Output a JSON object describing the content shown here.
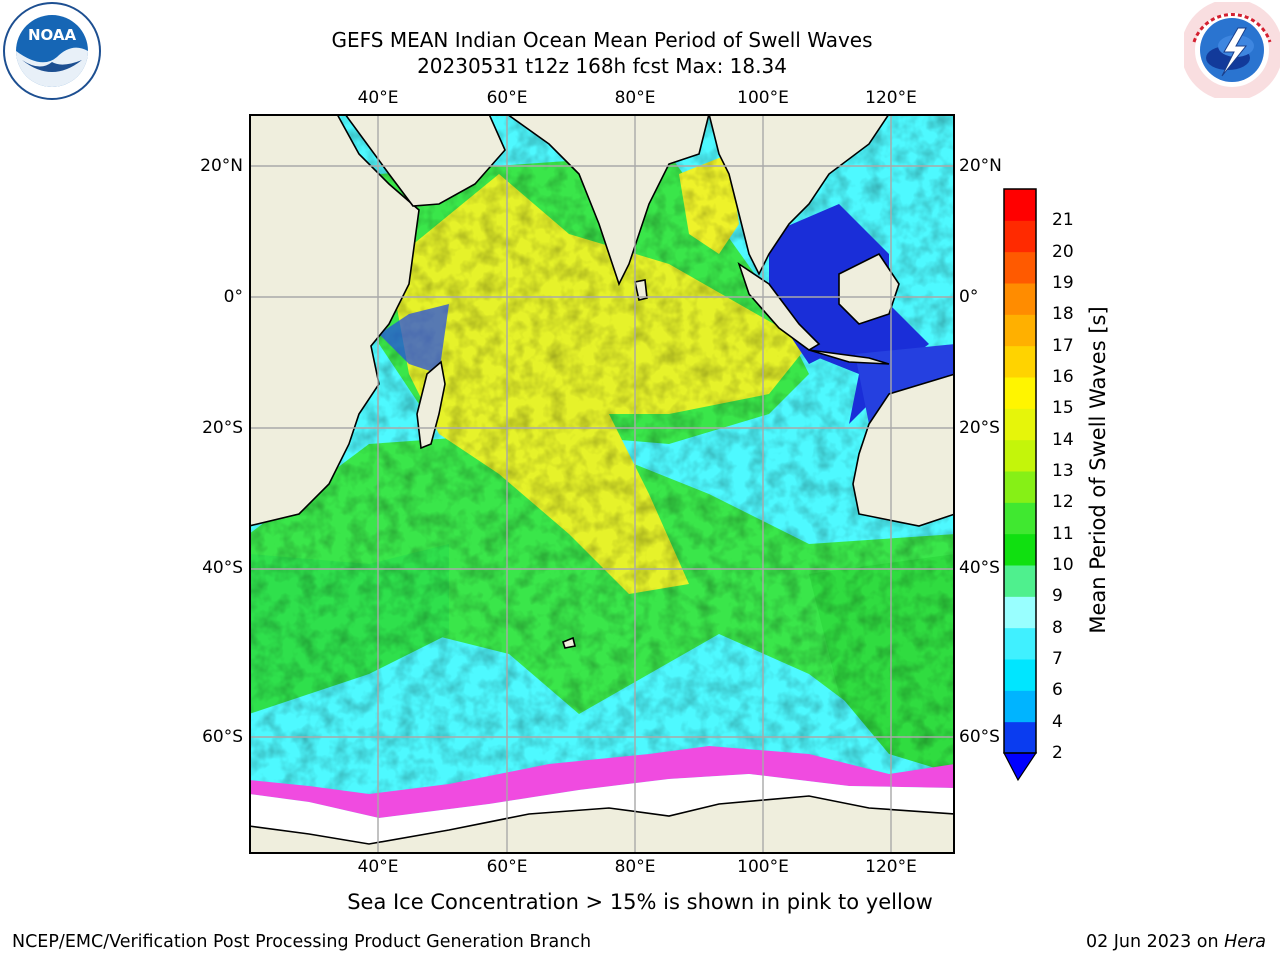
{
  "title": {
    "line1": "GEFS MEAN Indian Ocean Mean Period of Swell Waves",
    "line2": "20230531 t12z 168h fcst   Max: 18.34"
  },
  "map": {
    "lon_labels": [
      "40°E",
      "60°E",
      "80°E",
      "100°E",
      "120°E"
    ],
    "lat_labels": [
      "20°N",
      "0°",
      "20°S",
      "40°S",
      "60°S"
    ],
    "lon_range": [
      20,
      130
    ],
    "lat_range": [
      -75,
      27
    ],
    "colors": {
      "land": "#efeedd",
      "ocean_teal": "#3ef5ee",
      "ocean_cyan": "#4ef9ff",
      "green": "#3ae64a",
      "yellow": "#eef22a",
      "blue": "#1a2ed8",
      "ice_pink": "#f04be0",
      "ice_white": "#ffffff"
    }
  },
  "colorbar": {
    "label": "Mean Period of Swell Waves [s]",
    "ticks": [
      "2",
      "4",
      "6",
      "7",
      "8",
      "9",
      "10",
      "11",
      "12",
      "13",
      "14",
      "15",
      "16",
      "17",
      "18",
      "19",
      "20",
      "21"
    ],
    "colors": [
      "#0a3cf0",
      "#00b4ff",
      "#00e6ff",
      "#40f0ff",
      "#99ffff",
      "#4ff08e",
      "#10e010",
      "#40e830",
      "#86f016",
      "#c4f50a",
      "#e6f50a",
      "#fff500",
      "#ffd300",
      "#ffb000",
      "#ff8c00",
      "#ff5a00",
      "#ff2a00",
      "#ff0000"
    ]
  },
  "note": "Sea Ice Concentration > 15% is shown in pink to yellow",
  "footer": {
    "left": "NCEP/EMC/Verification Post Processing Product Generation Branch",
    "date": "02 Jun 2023 on ",
    "machine": "Hera"
  },
  "logos": {
    "left": "noaa-logo",
    "right": "nws-logo"
  }
}
